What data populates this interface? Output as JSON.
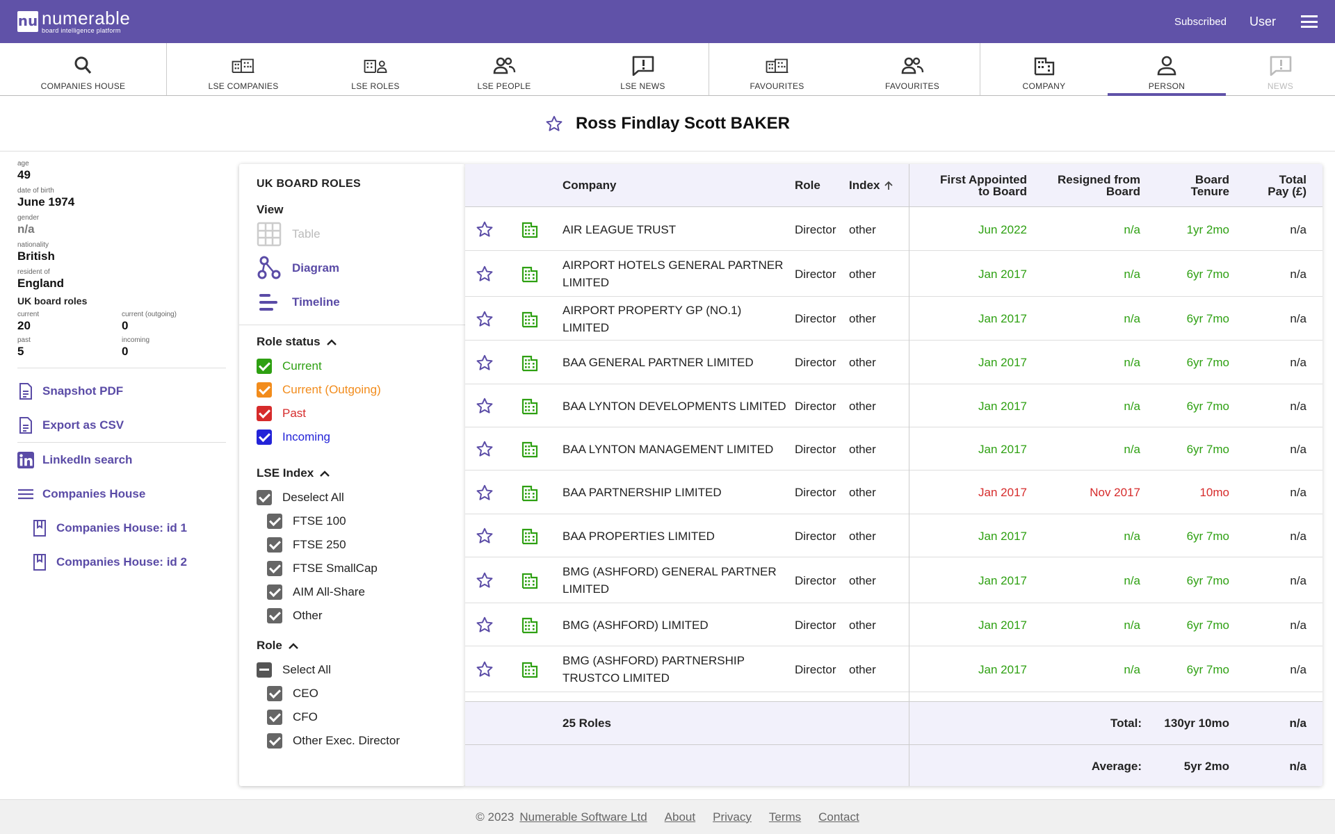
{
  "header": {
    "logo_mark": "nu",
    "logo_name": "numerable",
    "logo_tagline": "board intelligence platform",
    "subscribed": "Subscribed",
    "user": "User"
  },
  "nav": [
    {
      "label": "COMPANIES HOUSE",
      "icon": "search-icon"
    },
    {
      "label": "LSE COMPANIES",
      "icon": "buildings-icon"
    },
    {
      "label": "LSE ROLES",
      "icon": "building-person-icon"
    },
    {
      "label": "LSE PEOPLE",
      "icon": "people-icon"
    },
    {
      "label": "LSE NEWS",
      "icon": "news-icon"
    },
    {
      "label": "FAVOURITES",
      "icon": "buildings-icon"
    },
    {
      "label": "FAVOURITES",
      "icon": "people-icon"
    },
    {
      "label": "COMPANY",
      "icon": "building-icon"
    },
    {
      "label": "PERSON",
      "icon": "person-icon"
    },
    {
      "label": "NEWS",
      "icon": "news-icon"
    }
  ],
  "person": {
    "name": "Ross Findlay Scott BAKER"
  },
  "profile": {
    "age_label": "age",
    "age": "49",
    "dob_label": "date of birth",
    "dob": "June 1974",
    "gender_label": "gender",
    "gender": "n/a",
    "nationality_label": "nationality",
    "nationality": "British",
    "resident_label": "resident of",
    "resident": "England",
    "roles_title": "UK board roles",
    "current_label": "current",
    "current": "20",
    "outgoing_label": "current (outgoing)",
    "outgoing": "0",
    "past_label": "past",
    "past": "5",
    "incoming_label": "incoming",
    "incoming": "0"
  },
  "links": {
    "snapshot": "Snapshot PDF",
    "export": "Export as CSV",
    "linkedin": "LinkedIn search",
    "ch": "Companies House",
    "ch1": "Companies House: id 1",
    "ch2": "Companies House: id 2"
  },
  "filters": {
    "title": "UK BOARD ROLES",
    "view_title": "View",
    "view_table": "Table",
    "view_diagram": "Diagram",
    "view_timeline": "Timeline",
    "role_status_title": "Role status",
    "status_current": "Current",
    "status_outgoing": "Current (Outgoing)",
    "status_past": "Past",
    "status_incoming": "Incoming",
    "lse_title": "LSE Index",
    "lse_deselect": "Deselect All",
    "lse_ftse100": "FTSE 100",
    "lse_ftse250": "FTSE 250",
    "lse_smallcap": "FTSE SmallCap",
    "lse_aim": "AIM All-Share",
    "lse_other": "Other",
    "role_title": "Role",
    "role_select": "Select All",
    "role_ceo": "CEO",
    "role_cfo": "CFO",
    "role_other_exec": "Other Exec. Director"
  },
  "colors": {
    "brand": "#6052a8",
    "link": "#5a4ba6",
    "green": "#2ea012",
    "red": "#d62b2b",
    "orange": "#f28c1c",
    "blue": "#2323d8",
    "gray": "#666666"
  },
  "table": {
    "headers": {
      "company": "Company",
      "role": "Role",
      "index": "Index",
      "first_l1": "First Appointed",
      "first_l2": "to Board",
      "resigned_l1": "Resigned from",
      "resigned_l2": "Board",
      "tenure_l1": "Board",
      "tenure_l2": "Tenure",
      "pay_l1": "Total",
      "pay_l2": "Pay (£)"
    },
    "rows": [
      {
        "company": "AIR LEAGUE TRUST",
        "role": "Director",
        "index": "other",
        "first": "Jun 2022",
        "resigned": "n/a",
        "tenure": "1yr 2mo",
        "pay": "n/a",
        "status": "current"
      },
      {
        "company": "AIRPORT HOTELS GENERAL PARTNER LIMITED",
        "role": "Director",
        "index": "other",
        "first": "Jan 2017",
        "resigned": "n/a",
        "tenure": "6yr 7mo",
        "pay": "n/a",
        "status": "current"
      },
      {
        "company": "AIRPORT PROPERTY GP (NO.1) LIMITED",
        "role": "Director",
        "index": "other",
        "first": "Jan 2017",
        "resigned": "n/a",
        "tenure": "6yr 7mo",
        "pay": "n/a",
        "status": "current"
      },
      {
        "company": "BAA GENERAL PARTNER LIMITED",
        "role": "Director",
        "index": "other",
        "first": "Jan 2017",
        "resigned": "n/a",
        "tenure": "6yr 7mo",
        "pay": "n/a",
        "status": "current"
      },
      {
        "company": "BAA LYNTON DEVELOPMENTS LIMITED",
        "role": "Director",
        "index": "other",
        "first": "Jan 2017",
        "resigned": "n/a",
        "tenure": "6yr 7mo",
        "pay": "n/a",
        "status": "current"
      },
      {
        "company": "BAA LYNTON MANAGEMENT LIMITED",
        "role": "Director",
        "index": "other",
        "first": "Jan 2017",
        "resigned": "n/a",
        "tenure": "6yr 7mo",
        "pay": "n/a",
        "status": "current"
      },
      {
        "company": "BAA PARTNERSHIP LIMITED",
        "role": "Director",
        "index": "other",
        "first": "Jan 2017",
        "resigned": "Nov 2017",
        "tenure": "10mo",
        "pay": "n/a",
        "status": "past"
      },
      {
        "company": "BAA PROPERTIES LIMITED",
        "role": "Director",
        "index": "other",
        "first": "Jan 2017",
        "resigned": "n/a",
        "tenure": "6yr 7mo",
        "pay": "n/a",
        "status": "current"
      },
      {
        "company": "BMG (ASHFORD) GENERAL PARTNER LIMITED",
        "role": "Director",
        "index": "other",
        "first": "Jan 2017",
        "resigned": "n/a",
        "tenure": "6yr 7mo",
        "pay": "n/a",
        "status": "current"
      },
      {
        "company": "BMG (ASHFORD) LIMITED",
        "role": "Director",
        "index": "other",
        "first": "Jan 2017",
        "resigned": "n/a",
        "tenure": "6yr 7mo",
        "pay": "n/a",
        "status": "current"
      },
      {
        "company": "BMG (ASHFORD) PARTNERSHIP TRUSTCO LIMITED",
        "role": "Director",
        "index": "other",
        "first": "Jan 2017",
        "resigned": "n/a",
        "tenure": "6yr 7mo",
        "pay": "n/a",
        "status": "current"
      }
    ],
    "footer": {
      "count": "25 Roles",
      "total_label": "Total:",
      "total_tenure": "130yr 10mo",
      "total_pay": "n/a",
      "avg_label": "Average:",
      "avg_tenure": "5yr 2mo",
      "avg_pay": "n/a"
    }
  },
  "footer": {
    "copyright": "© 2023",
    "company": "Numerable Software Ltd",
    "about": "About",
    "privacy": "Privacy",
    "terms": "Terms",
    "contact": "Contact"
  }
}
